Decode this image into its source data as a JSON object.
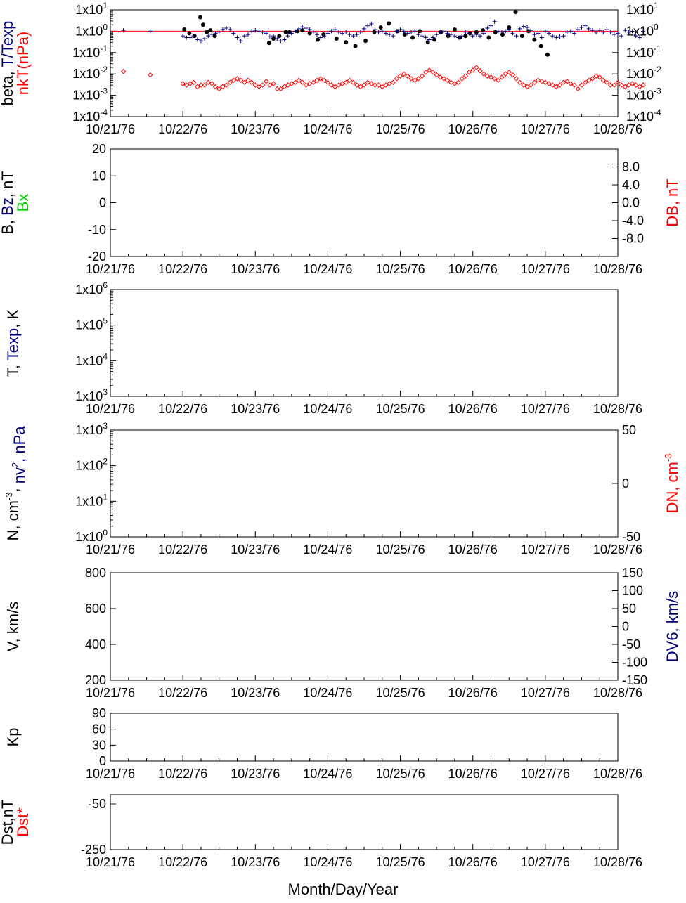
{
  "colors": {
    "black": "#000000",
    "blue": "#00007f",
    "red": "#ff0000",
    "green": "#00d000"
  },
  "x_axis": {
    "ticks": [
      "10/21/76",
      "10/22/76",
      "10/23/76",
      "10/24/76",
      "10/25/76",
      "10/26/76",
      "10/27/76",
      "10/28/76"
    ],
    "label": "Month/Day/Year"
  },
  "panels": [
    {
      "id": "beta",
      "ylabel_lines": [
        [
          {
            "text": "beta, ",
            "color": "black"
          },
          {
            "text": "T/Texp",
            "color": "blue"
          }
        ],
        [
          {
            "text": "nkT(nPa)",
            "color": "red"
          }
        ]
      ],
      "left_ticks": [
        {
          "base": "1x10",
          "exp": "1",
          "v": 1
        },
        {
          "base": "1x10",
          "exp": "0",
          "v": 0
        },
        {
          "base": "1x10",
          "exp": "-1",
          "v": -1
        },
        {
          "base": "1x10",
          "exp": "-2",
          "v": -2
        },
        {
          "base": "1x10",
          "exp": "-3",
          "v": -3
        },
        {
          "base": "1x10",
          "exp": "-4",
          "v": -4
        }
      ],
      "right_ticks": [
        {
          "base": "1x10",
          "exp": "1",
          "v": 1
        },
        {
          "base": "1x10",
          "exp": "0",
          "v": 0
        },
        {
          "base": "1x10",
          "exp": "-1",
          "v": -1
        },
        {
          "base": "1x10",
          "exp": "-2",
          "v": -2
        },
        {
          "base": "1x10",
          "exp": "-3",
          "v": -3
        },
        {
          "base": "1x10",
          "exp": "-4",
          "v": -4
        }
      ]
    },
    {
      "id": "bfield",
      "ylabel_lines": [
        [
          {
            "text": "B, ",
            "color": "black"
          },
          {
            "text": "Bz",
            "color": "blue"
          },
          {
            "text": ", nT",
            "color": "black"
          }
        ],
        [
          {
            "text": "Bx",
            "color": "green"
          }
        ]
      ],
      "right_label": "DB, nT",
      "left_ticks": [
        {
          "t": "20",
          "v": 20
        },
        {
          "t": "10",
          "v": 10
        },
        {
          "t": "0",
          "v": 0
        },
        {
          "t": "-10",
          "v": -10
        },
        {
          "t": "-20",
          "v": -20
        }
      ],
      "right_ticks": [
        {
          "t": "8.0",
          "v": 8
        },
        {
          "t": "4.0",
          "v": 4
        },
        {
          "t": "0.0",
          "v": 0
        },
        {
          "t": "-4.0",
          "v": -4
        },
        {
          "t": "-8.0",
          "v": -8
        }
      ]
    },
    {
      "id": "temp",
      "ylabel_lines": [
        [
          {
            "text": "T, ",
            "color": "black"
          },
          {
            "text": "Texp",
            "color": "blue"
          },
          {
            "text": ", K",
            "color": "black"
          }
        ]
      ],
      "left_ticks": [
        {
          "base": "1x10",
          "exp": "6",
          "v": 6
        },
        {
          "base": "1x10",
          "exp": "5",
          "v": 5
        },
        {
          "base": "1x10",
          "exp": "4",
          "v": 4
        },
        {
          "base": "1x10",
          "exp": "3",
          "v": 3
        }
      ]
    },
    {
      "id": "density",
      "ylabel_lines": [
        [
          {
            "text": "N, cm",
            "color": "black"
          },
          {
            "text": "-3",
            "color": "black",
            "sup": true
          },
          {
            "text": ", ",
            "color": "black"
          },
          {
            "text": "nv",
            "color": "blue"
          },
          {
            "text": "2",
            "color": "blue",
            "sup": true
          },
          {
            "text": ", nPa",
            "color": "blue"
          }
        ]
      ],
      "right_label": "DN, cm",
      "right_label_sup": "-3",
      "left_ticks": [
        {
          "base": "1x10",
          "exp": "3",
          "v": 3
        },
        {
          "base": "1x10",
          "exp": "2",
          "v": 2
        },
        {
          "base": "1x10",
          "exp": "1",
          "v": 1
        },
        {
          "base": "1x10",
          "exp": "0",
          "v": 0
        }
      ],
      "right_ticks": [
        {
          "t": "50",
          "v": 50
        },
        {
          "t": "0",
          "v": 0
        },
        {
          "t": "-50",
          "v": -50
        }
      ]
    },
    {
      "id": "velocity",
      "ylabel_lines": [
        [
          {
            "text": "V, km/s",
            "color": "black"
          }
        ]
      ],
      "right_label": "DV6, km/s",
      "left_ticks": [
        {
          "t": "800",
          "v": 800
        },
        {
          "t": "600",
          "v": 600
        },
        {
          "t": "400",
          "v": 400
        },
        {
          "t": "200",
          "v": 200
        }
      ],
      "right_ticks": [
        {
          "t": "150",
          "v": 150
        },
        {
          "t": "100",
          "v": 100
        },
        {
          "t": "50",
          "v": 50
        },
        {
          "t": "0",
          "v": 0
        },
        {
          "t": "-50",
          "v": -50
        },
        {
          "t": "-100",
          "v": -100
        },
        {
          "t": "-150",
          "v": -150
        }
      ]
    },
    {
      "id": "kp",
      "ylabel_lines": [
        [
          {
            "text": "Kp",
            "color": "black"
          }
        ]
      ],
      "left_ticks": [
        {
          "t": "90",
          "v": 90
        },
        {
          "t": "60",
          "v": 60
        },
        {
          "t": "30",
          "v": 30
        },
        {
          "t": "0",
          "v": 0
        }
      ]
    },
    {
      "id": "dst",
      "ylabel_lines": [
        [
          {
            "text": "Dst,nT",
            "color": "black"
          }
        ],
        [
          {
            "text": "Dst*",
            "color": "red"
          }
        ]
      ],
      "left_ticks": [
        {
          "t": "-50",
          "v": -50
        },
        {
          "t": "-250",
          "v": -250
        }
      ]
    }
  ],
  "chart_data": [
    {
      "type": "scatter",
      "panel": "beta",
      "y_scale": "log",
      "ylim": [
        0.0001,
        10
      ],
      "reference_line": 1,
      "series": [
        {
          "name": "beta",
          "color": "black",
          "marker": "dot",
          "x": [
            10.02,
            10.09,
            10.16,
            10.24,
            10.28,
            10.33,
            10.38,
            10.44,
            11.19,
            11.25,
            11.33,
            11.42,
            11.47,
            11.58,
            11.65,
            11.75,
            11.86,
            11.94,
            12.12,
            12.25,
            12.38,
            12.52,
            12.64,
            12.73,
            12.84,
            12.96,
            13.06,
            13.17,
            13.27,
            13.38,
            13.47,
            13.56,
            13.66,
            13.75,
            13.82,
            13.9,
            13.96,
            14.05,
            14.14,
            14.22,
            14.31,
            14.41,
            14.5,
            14.59,
            14.68,
            14.77,
            14.85,
            14.94,
            15.03
          ],
          "y": [
            1.2,
            0.8,
            0.6,
            4.5,
            2.0,
            0.9,
            1.1,
            0.6,
            0.28,
            0.45,
            0.6,
            0.9,
            0.9,
            1.0,
            1.1,
            0.8,
            0.4,
            0.7,
            0.45,
            0.3,
            0.2,
            0.35,
            0.9,
            1.5,
            2.3,
            1.0,
            0.7,
            0.5,
            1.0,
            0.3,
            0.4,
            0.9,
            0.6,
            1.2,
            0.5,
            0.6,
            0.8,
            0.9,
            1.1,
            0.5,
            0.9,
            0.7,
            1.5,
            8.0,
            0.6,
            1.0,
            0.4,
            0.2,
            0.08
          ]
        },
        {
          "name": "T/Texp",
          "color": "blue",
          "marker": "plus",
          "x": [
            9.18,
            9.55,
            10.0,
            10.05,
            10.1,
            10.15,
            10.2,
            10.25,
            10.3,
            10.35,
            10.4,
            10.45,
            10.5,
            10.55,
            10.6,
            10.65,
            10.7,
            10.75,
            10.8,
            10.85,
            10.9,
            10.95,
            11.0,
            11.05,
            11.1,
            11.15,
            11.2,
            11.25,
            11.3,
            11.35,
            11.4,
            11.45,
            11.5,
            11.55,
            11.6,
            11.65,
            11.7,
            11.75,
            11.8,
            11.85,
            11.9,
            11.95,
            12.0,
            12.05,
            12.1,
            12.15,
            12.2,
            12.25,
            12.3,
            12.35,
            12.4,
            12.45,
            12.5,
            12.55,
            12.6,
            12.65,
            12.7,
            12.75,
            12.8,
            12.85,
            12.9,
            12.95,
            13.0,
            13.05,
            13.1,
            13.15,
            13.2,
            13.25,
            13.3,
            13.35,
            13.4,
            13.45,
            13.5,
            13.55,
            13.6,
            13.65,
            13.7,
            13.75,
            13.8,
            13.85,
            13.9,
            13.95,
            14.0,
            14.05,
            14.1,
            14.15,
            14.2,
            14.25,
            14.3,
            14.35,
            14.4,
            14.45,
            14.5,
            14.55,
            14.6,
            14.65,
            14.7,
            14.75,
            14.8,
            14.85,
            14.9,
            14.95,
            15.0,
            15.05,
            15.1,
            15.15,
            15.2,
            15.25,
            15.3,
            15.35,
            15.4,
            15.45,
            15.5,
            15.55,
            15.6,
            15.65,
            15.7,
            15.75,
            15.8,
            15.85,
            15.9,
            15.95,
            16.0,
            16.05,
            16.1,
            16.15,
            16.2,
            16.25,
            16.3,
            16.35
          ],
          "y": [
            1.1,
            1.0,
            0.6,
            0.5,
            0.5,
            0.6,
            0.4,
            0.35,
            0.45,
            0.6,
            0.7,
            0.8,
            0.9,
            1.2,
            1.4,
            1.2,
            0.8,
            0.5,
            0.35,
            0.6,
            0.7,
            1.0,
            1.1,
            1.0,
            0.9,
            0.8,
            0.55,
            0.6,
            0.45,
            0.35,
            0.4,
            0.6,
            0.8,
            1.0,
            1.3,
            1.6,
            1.4,
            1.2,
            0.9,
            0.7,
            0.5,
            0.6,
            0.8,
            1.0,
            1.2,
            0.9,
            0.8,
            0.9,
            0.7,
            0.6,
            0.7,
            0.9,
            1.3,
            1.8,
            2.2,
            1.2,
            0.9,
            1.0,
            0.8,
            0.7,
            0.6,
            1.0,
            1.2,
            1.0,
            0.8,
            0.9,
            1.0,
            0.7,
            0.6,
            0.5,
            0.4,
            0.5,
            0.7,
            0.9,
            1.0,
            0.8,
            0.7,
            0.6,
            0.5,
            0.6,
            0.9,
            0.8,
            0.6,
            0.7,
            0.6,
            0.8,
            1.4,
            1.8,
            2.8,
            1.0,
            0.9,
            1.0,
            1.2,
            0.8,
            0.6,
            1.3,
            1.7,
            1.5,
            1.1,
            0.7,
            0.8,
            0.5,
            1.0,
            0.8,
            0.6,
            0.5,
            0.55,
            0.6,
            0.9,
            1.0,
            0.8,
            1.2,
            1.5,
            1.8,
            1.3,
            1.1,
            0.9,
            1.1,
            0.9,
            1.2,
            0.9,
            0.7,
            0.8,
            0.6,
            1.1,
            0.9,
            1.0,
            0.6,
            0.5,
            1.0
          ]
        },
        {
          "name": "nkT(nPa)",
          "color": "red",
          "marker": "diamond",
          "x": [
            9.18,
            9.55,
            10.0,
            10.05,
            10.1,
            10.15,
            10.2,
            10.25,
            10.3,
            10.35,
            10.4,
            10.45,
            10.5,
            10.55,
            10.6,
            10.65,
            10.7,
            10.75,
            10.8,
            10.85,
            10.9,
            10.95,
            11.0,
            11.05,
            11.1,
            11.15,
            11.2,
            11.25,
            11.3,
            11.35,
            11.4,
            11.45,
            11.5,
            11.55,
            11.6,
            11.65,
            11.7,
            11.75,
            11.8,
            11.85,
            11.9,
            11.95,
            12.0,
            12.05,
            12.1,
            12.15,
            12.2,
            12.25,
            12.3,
            12.35,
            12.4,
            12.45,
            12.5,
            12.55,
            12.6,
            12.65,
            12.7,
            12.75,
            12.8,
            12.85,
            12.9,
            12.95,
            13.0,
            13.05,
            13.1,
            13.15,
            13.2,
            13.25,
            13.3,
            13.35,
            13.4,
            13.45,
            13.5,
            13.55,
            13.6,
            13.65,
            13.7,
            13.75,
            13.8,
            13.85,
            13.9,
            13.95,
            14.0,
            14.05,
            14.1,
            14.15,
            14.2,
            14.25,
            14.3,
            14.35,
            14.4,
            14.45,
            14.5,
            14.55,
            14.6,
            14.65,
            14.7,
            14.75,
            14.8,
            14.85,
            14.9,
            14.95,
            15.0,
            15.05,
            15.1,
            15.15,
            15.2,
            15.25,
            15.3,
            15.35,
            15.4,
            15.45,
            15.5,
            15.55,
            15.6,
            15.65,
            15.7,
            15.75,
            15.8,
            15.85,
            15.9,
            15.95,
            16.0,
            16.05,
            16.1,
            16.15,
            16.2,
            16.25,
            16.3,
            16.35
          ],
          "y": [
            0.013,
            0.009,
            0.0035,
            0.003,
            0.0035,
            0.004,
            0.0025,
            0.003,
            0.003,
            0.004,
            0.0035,
            0.0025,
            0.002,
            0.0025,
            0.003,
            0.004,
            0.005,
            0.006,
            0.005,
            0.004,
            0.005,
            0.004,
            0.003,
            0.0025,
            0.003,
            0.0045,
            0.003,
            0.0035,
            0.002,
            0.002,
            0.0025,
            0.003,
            0.0035,
            0.004,
            0.005,
            0.004,
            0.003,
            0.0035,
            0.004,
            0.005,
            0.006,
            0.005,
            0.004,
            0.003,
            0.0025,
            0.003,
            0.0035,
            0.004,
            0.005,
            0.004,
            0.003,
            0.0025,
            0.003,
            0.004,
            0.0035,
            0.003,
            0.003,
            0.0025,
            0.003,
            0.0035,
            0.004,
            0.006,
            0.008,
            0.01,
            0.008,
            0.006,
            0.005,
            0.006,
            0.008,
            0.012,
            0.015,
            0.012,
            0.009,
            0.007,
            0.006,
            0.005,
            0.004,
            0.0035,
            0.004,
            0.006,
            0.008,
            0.012,
            0.015,
            0.02,
            0.014,
            0.01,
            0.008,
            0.007,
            0.006,
            0.005,
            0.007,
            0.01,
            0.012,
            0.009,
            0.006,
            0.004,
            0.003,
            0.0025,
            0.003,
            0.004,
            0.005,
            0.0045,
            0.004,
            0.0035,
            0.003,
            0.0025,
            0.003,
            0.004,
            0.0045,
            0.0035,
            0.003,
            0.002,
            0.003,
            0.004,
            0.005,
            0.006,
            0.008,
            0.007,
            0.005,
            0.004,
            0.003,
            0.003,
            0.004,
            0.003,
            0.0025,
            0.003,
            0.0035,
            0.003,
            0.0025,
            0.003
          ]
        }
      ]
    }
  ]
}
